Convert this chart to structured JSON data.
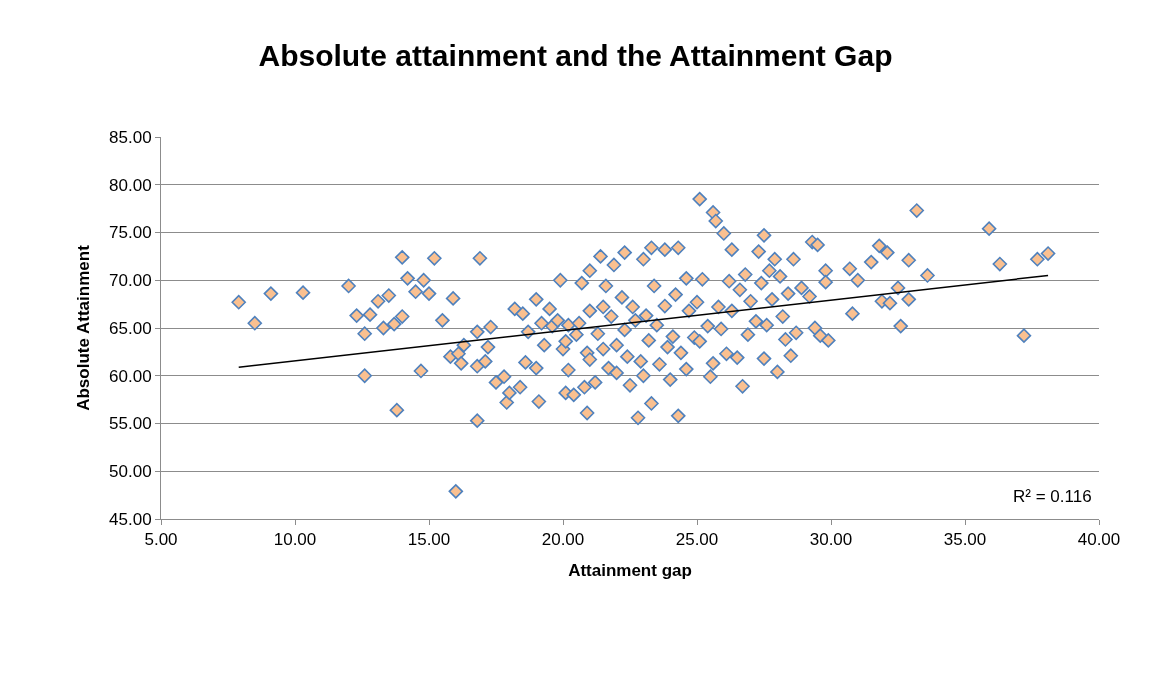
{
  "chart_data": {
    "type": "scatter",
    "title": "Absolute attainment and the Attainment Gap",
    "xlabel": "Attainment gap",
    "ylabel": "Absolute Attainment",
    "annotations": [
      "R² = 0.116"
    ],
    "xlim": [
      5,
      40
    ],
    "ylim": [
      45,
      85
    ],
    "xticks": [
      {
        "value": 5,
        "label": "5.00"
      },
      {
        "value": 10,
        "label": "10.00"
      },
      {
        "value": 15,
        "label": "15.00"
      },
      {
        "value": 20,
        "label": "20.00"
      },
      {
        "value": 25,
        "label": "25.00"
      },
      {
        "value": 30,
        "label": "30.00"
      },
      {
        "value": 35,
        "label": "35.00"
      },
      {
        "value": 40,
        "label": "40.00"
      }
    ],
    "yticks": [
      {
        "value": 45,
        "label": "45.00"
      },
      {
        "value": 50,
        "label": "50.00"
      },
      {
        "value": 55,
        "label": "55.00"
      },
      {
        "value": 60,
        "label": "60.00"
      },
      {
        "value": 65,
        "label": "65.00"
      },
      {
        "value": 70,
        "label": "70.00"
      },
      {
        "value": 75,
        "label": "75.00"
      },
      {
        "value": 80,
        "label": "80.00"
      },
      {
        "value": 85,
        "label": "85.00"
      }
    ],
    "grid": "y",
    "marker": "diamond",
    "series": [
      {
        "color": "#fac090",
        "x": [
          7.9,
          8.5,
          9.1,
          10.3,
          12.0,
          12.3,
          12.6,
          12.6,
          12.8,
          13.1,
          13.3,
          13.5,
          13.7,
          13.8,
          14.0,
          14.0,
          14.2,
          14.5,
          14.8,
          14.7,
          15.0,
          15.2,
          15.5,
          15.8,
          15.9,
          16.0,
          16.1,
          16.2,
          16.3,
          16.8,
          16.8,
          16.9,
          16.8,
          17.1,
          17.2,
          17.3,
          17.5,
          17.8,
          17.9,
          18.0,
          18.2,
          18.4,
          18.5,
          18.6,
          18.7,
          19.0,
          19.0,
          19.1,
          19.2,
          19.3,
          19.5,
          19.6,
          19.8,
          19.9,
          20.0,
          20.1,
          20.1,
          20.2,
          20.2,
          20.4,
          20.5,
          20.6,
          20.7,
          20.8,
          20.9,
          21.0,
          20.9,
          21.0,
          21.0,
          21.2,
          21.3,
          21.4,
          21.5,
          21.5,
          21.6,
          21.7,
          21.8,
          21.9,
          22.0,
          22.0,
          22.2,
          22.3,
          22.3,
          22.4,
          22.5,
          22.6,
          22.7,
          22.8,
          22.9,
          23.0,
          23.0,
          23.1,
          23.2,
          23.3,
          23.3,
          23.4,
          23.5,
          23.6,
          23.8,
          23.8,
          23.9,
          24.0,
          24.1,
          24.2,
          24.3,
          24.3,
          24.4,
          24.6,
          24.6,
          24.7,
          24.9,
          25.0,
          25.1,
          25.1,
          25.2,
          25.4,
          25.5,
          25.6,
          25.6,
          25.7,
          25.8,
          25.9,
          26.0,
          26.1,
          26.2,
          26.3,
          26.3,
          26.5,
          26.6,
          26.7,
          26.8,
          26.9,
          27.0,
          27.2,
          27.3,
          27.4,
          27.5,
          27.5,
          27.6,
          27.7,
          27.8,
          27.9,
          28.0,
          28.1,
          28.2,
          28.3,
          28.4,
          28.5,
          28.6,
          28.7,
          28.9,
          29.2,
          29.3,
          29.4,
          29.5,
          29.6,
          29.8,
          29.9,
          29.8,
          30.7,
          30.8,
          31.0,
          31.5,
          31.8,
          31.9,
          32.1,
          32.2,
          32.5,
          32.6,
          32.9,
          32.9,
          33.2,
          33.6,
          35.9,
          36.3,
          37.2,
          37.7,
          38.1
        ],
        "values": [
          67.7,
          65.5,
          68.6,
          68.7,
          69.4,
          66.3,
          64.4,
          60.0,
          66.4,
          67.8,
          65.0,
          68.4,
          65.4,
          56.4,
          72.4,
          66.2,
          70.2,
          68.8,
          70.0,
          60.5,
          68.6,
          72.3,
          65.8,
          62.0,
          68.1,
          47.9,
          62.3,
          61.3,
          63.2,
          61.0,
          64.6,
          72.3,
          55.3,
          61.5,
          63.0,
          65.1,
          59.3,
          59.9,
          57.2,
          58.2,
          67.0,
          58.8,
          66.5,
          61.4,
          64.6,
          60.8,
          68.0,
          57.3,
          65.5,
          63.2,
          67.0,
          65.2,
          65.8,
          70.0,
          62.8,
          63.6,
          58.2,
          65.3,
          60.6,
          58.0,
          64.3,
          65.5,
          69.7,
          58.8,
          62.4,
          71.0,
          56.1,
          61.7,
          66.8,
          59.3,
          64.4,
          72.5,
          67.2,
          62.8,
          69.4,
          60.8,
          66.2,
          71.6,
          63.2,
          60.3,
          68.2,
          72.9,
          64.8,
          62.0,
          59.0,
          67.2,
          65.8,
          55.6,
          61.5,
          60.0,
          72.2,
          66.3,
          63.7,
          73.4,
          57.1,
          69.4,
          65.3,
          61.2,
          67.3,
          73.2,
          63.0,
          59.6,
          64.1,
          68.5,
          73.4,
          55.8,
          62.4,
          70.2,
          60.7,
          66.8,
          64.0,
          67.7,
          78.5,
          63.6,
          70.1,
          65.2,
          59.9,
          77.1,
          61.3,
          76.2,
          67.2,
          64.9,
          74.9,
          62.3,
          69.9,
          73.2,
          66.8,
          61.9,
          69.0,
          58.9,
          70.6,
          64.3,
          67.8,
          65.7,
          73.0,
          69.7,
          74.7,
          61.8,
          65.3,
          71.0,
          68.0,
          72.2,
          60.4,
          70.4,
          66.2,
          63.8,
          68.6,
          62.1,
          72.2,
          64.5,
          69.2,
          68.3,
          74.0,
          65.0,
          73.7,
          64.2,
          71.0,
          63.7,
          69.8,
          71.2,
          66.5,
          70.0,
          71.9,
          73.6,
          67.8,
          72.9,
          67.6,
          69.2,
          65.2,
          72.1,
          68.0,
          77.3,
          70.5,
          75.4,
          71.7,
          64.2,
          72.2,
          72.8
        ]
      },
      {
        "type": "line",
        "color": "#000000",
        "marker": "none",
        "x": [
          7.9,
          38.1
        ],
        "values": [
          60.9,
          70.5
        ]
      }
    ]
  }
}
